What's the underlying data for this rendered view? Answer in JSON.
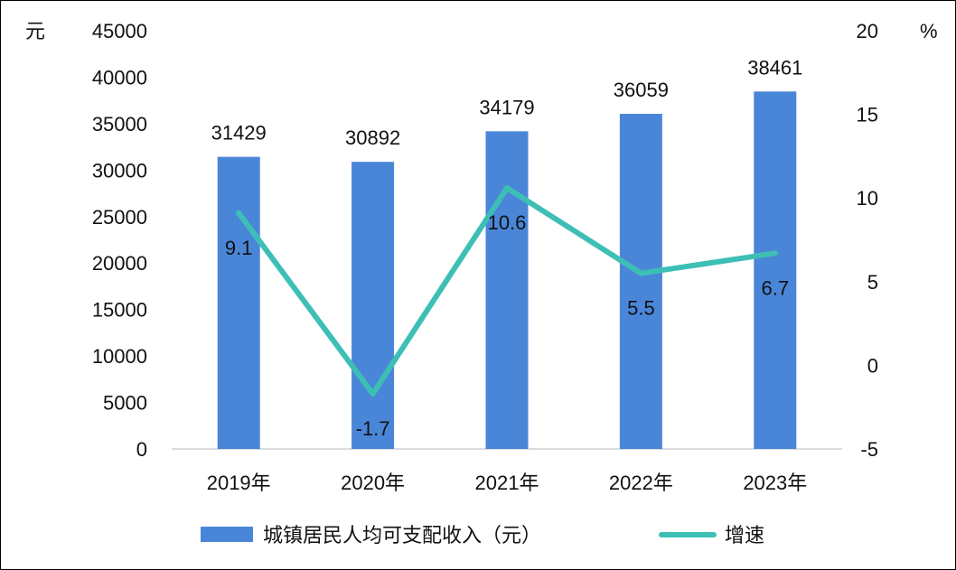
{
  "chart_data": {
    "type": "bar",
    "categories": [
      "2019年",
      "2020年",
      "2021年",
      "2022年",
      "2023年"
    ],
    "series": [
      {
        "name": "城镇居民人均可支配收入（元）",
        "type": "bar",
        "axis": "left",
        "color": "#4a86d8",
        "values": [
          31429,
          30892,
          34179,
          36059,
          38461
        ],
        "labels": [
          "31429",
          "30892",
          "34179",
          "36059",
          "38461"
        ]
      },
      {
        "name": "增速",
        "type": "line",
        "axis": "right",
        "color": "#3dbfb5",
        "values": [
          9.1,
          -1.7,
          10.6,
          5.5,
          6.7
        ],
        "labels": [
          "9.1",
          "-1.7",
          "10.6",
          "5.5",
          "6.7"
        ]
      }
    ],
    "y_left": {
      "unit": "元",
      "min": 0,
      "max": 45000,
      "ticks": [
        "0",
        "5000",
        "10000",
        "15000",
        "20000",
        "25000",
        "30000",
        "35000",
        "40000",
        "45000"
      ]
    },
    "y_right": {
      "unit": "%",
      "min": -5,
      "max": 20,
      "ticks": [
        "-5",
        "0",
        "5",
        "10",
        "15",
        "20"
      ]
    },
    "legend_position": "bottom",
    "grid": false
  }
}
